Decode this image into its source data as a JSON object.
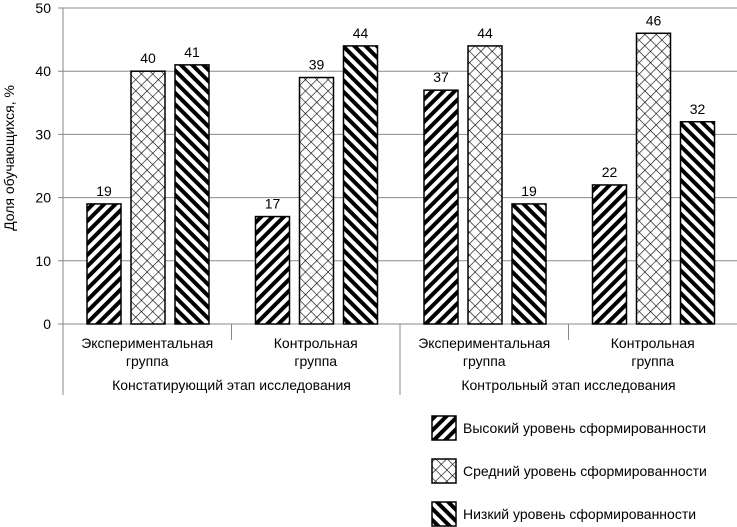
{
  "chart_data": {
    "type": "bar",
    "ylabel": "Доля обучающихся, %",
    "ylim": [
      0,
      50
    ],
    "yticks": [
      0,
      10,
      20,
      30,
      40,
      50
    ],
    "grid": true,
    "categories": [
      {
        "line1": "Экспериментальная",
        "line2": "группа"
      },
      {
        "line1": "Контрольная",
        "line2": "группа"
      },
      {
        "line1": "Экспериментальная",
        "line2": "группа"
      },
      {
        "line1": "Контрольная",
        "line2": "группа"
      }
    ],
    "outer_categories": [
      "Констатирующий этап исследования",
      "Контрольный этап исследования"
    ],
    "series": [
      {
        "name": "Высокий уровень сформированности",
        "pattern": "forward-diagonal",
        "values": [
          19,
          17,
          37,
          22
        ]
      },
      {
        "name": "Средний уровень сформированности",
        "pattern": "crosshatch",
        "values": [
          40,
          39,
          44,
          46
        ]
      },
      {
        "name": "Низкий уровень сформированности",
        "pattern": "backward-diagonal",
        "values": [
          41,
          44,
          19,
          32
        ]
      }
    ],
    "legend_position": "bottom-right",
    "colors": {
      "grid": "#888888",
      "bar_stroke": "#000000"
    }
  }
}
